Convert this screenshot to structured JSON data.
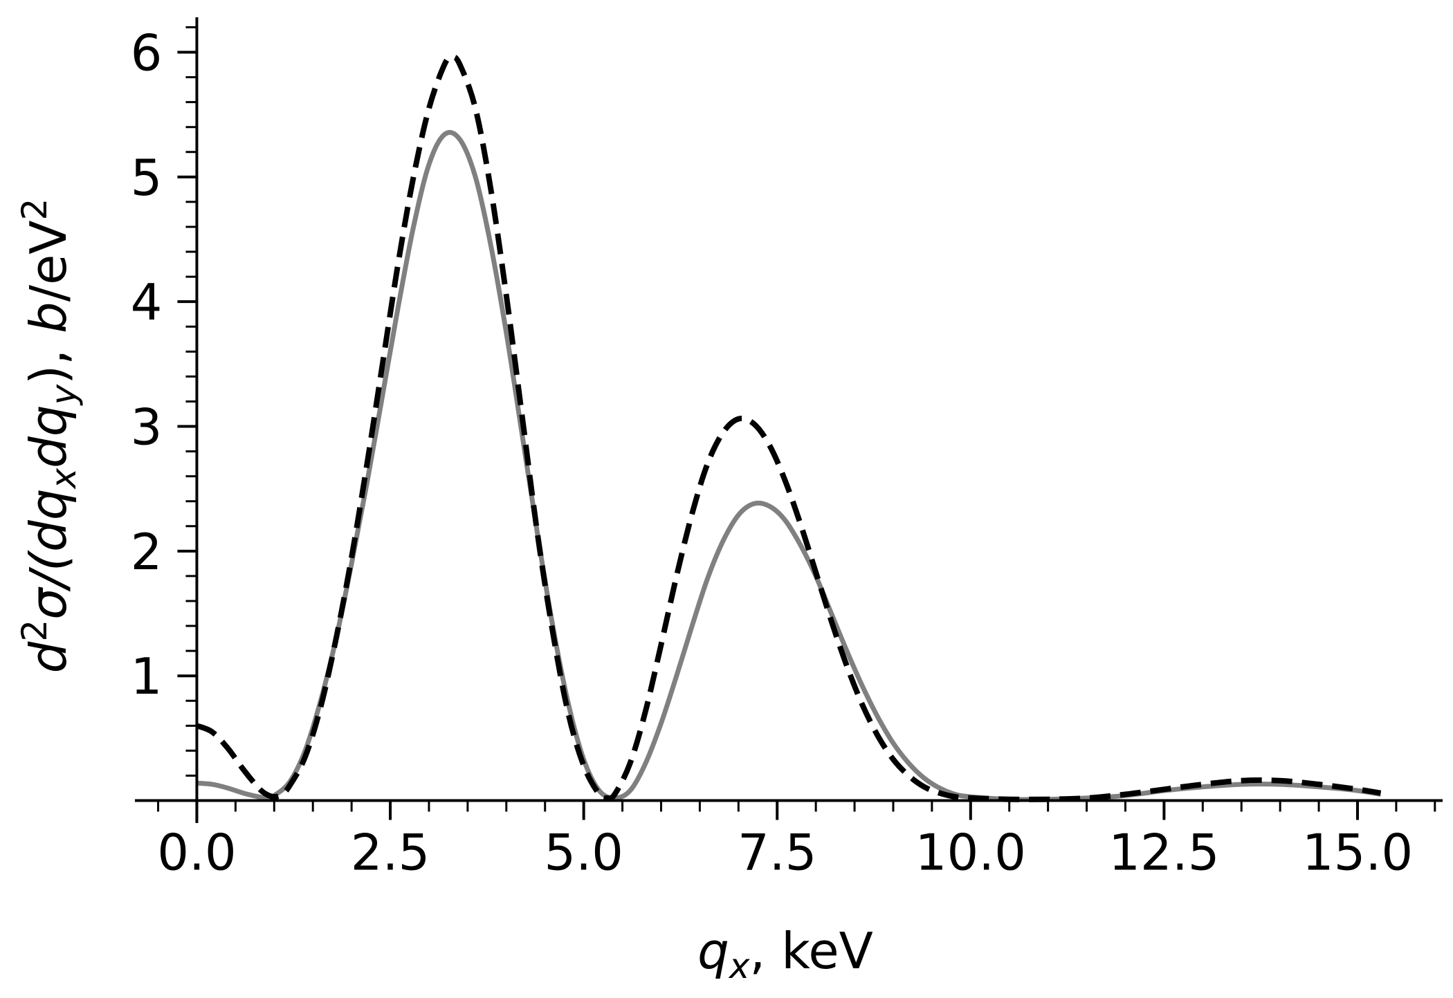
{
  "chart_data": {
    "type": "line",
    "title": "",
    "xlabel": {
      "var": "q",
      "sub": "x",
      "rest": ", keV"
    },
    "ylabel": {
      "d": "d",
      "d_sup": "2",
      "sigma": "σ/(dq",
      "sub1": "x",
      "mid": "dq",
      "sub2": "y",
      "close": "),  ",
      "unit_b": "b",
      "unit_rest": "/eV",
      "unit_sup": "2"
    },
    "xlim": [
      -0.8,
      16.1
    ],
    "ylim": [
      -0.18,
      6.28
    ],
    "x_ticks": [
      {
        "value": 0.0,
        "label": "0.0"
      },
      {
        "value": 2.5,
        "label": "2.5"
      },
      {
        "value": 5.0,
        "label": "5.0"
      },
      {
        "value": 7.5,
        "label": "7.5"
      },
      {
        "value": 10.0,
        "label": "10.0"
      },
      {
        "value": 12.5,
        "label": "12.5"
      },
      {
        "value": 15.0,
        "label": "15.0"
      }
    ],
    "y_ticks": [
      {
        "value": 1,
        "label": "1"
      },
      {
        "value": 2,
        "label": "2"
      },
      {
        "value": 3,
        "label": "3"
      },
      {
        "value": 4,
        "label": "4"
      },
      {
        "value": 5,
        "label": "5"
      },
      {
        "value": 6,
        "label": "6"
      }
    ],
    "x_minor_step": 0.5,
    "y_minor_step": 0.2,
    "grid": false,
    "legend": "none",
    "series": [
      {
        "style": "solid",
        "color": "#808080",
        "points": [
          [
            0.0,
            0.14
          ],
          [
            0.2,
            0.13
          ],
          [
            0.4,
            0.1
          ],
          [
            0.6,
            0.06
          ],
          [
            0.8,
            0.03
          ],
          [
            0.9,
            0.02
          ],
          [
            1.0,
            0.04
          ],
          [
            1.2,
            0.15
          ],
          [
            1.4,
            0.4
          ],
          [
            1.6,
            0.8
          ],
          [
            1.8,
            1.3
          ],
          [
            2.0,
            1.9
          ],
          [
            2.2,
            2.55
          ],
          [
            2.4,
            3.25
          ],
          [
            2.6,
            3.95
          ],
          [
            2.8,
            4.6
          ],
          [
            3.0,
            5.1
          ],
          [
            3.2,
            5.34
          ],
          [
            3.4,
            5.3
          ],
          [
            3.6,
            5.0
          ],
          [
            3.8,
            4.45
          ],
          [
            4.0,
            3.75
          ],
          [
            4.2,
            2.95
          ],
          [
            4.4,
            2.15
          ],
          [
            4.6,
            1.4
          ],
          [
            4.8,
            0.78
          ],
          [
            5.0,
            0.33
          ],
          [
            5.2,
            0.08
          ],
          [
            5.4,
            0.02
          ],
          [
            5.6,
            0.08
          ],
          [
            5.8,
            0.3
          ],
          [
            6.0,
            0.62
          ],
          [
            6.2,
            1.0
          ],
          [
            6.4,
            1.4
          ],
          [
            6.6,
            1.78
          ],
          [
            6.8,
            2.08
          ],
          [
            7.0,
            2.29
          ],
          [
            7.2,
            2.38
          ],
          [
            7.4,
            2.36
          ],
          [
            7.6,
            2.25
          ],
          [
            7.8,
            2.05
          ],
          [
            8.0,
            1.8
          ],
          [
            8.2,
            1.5
          ],
          [
            8.4,
            1.2
          ],
          [
            8.6,
            0.92
          ],
          [
            8.8,
            0.67
          ],
          [
            9.0,
            0.46
          ],
          [
            9.2,
            0.3
          ],
          [
            9.4,
            0.18
          ],
          [
            9.6,
            0.1
          ],
          [
            9.8,
            0.05
          ],
          [
            10.0,
            0.03
          ],
          [
            10.5,
            0.01
          ],
          [
            11.0,
            0.01
          ],
          [
            11.5,
            0.02
          ],
          [
            12.0,
            0.04
          ],
          [
            12.5,
            0.08
          ],
          [
            13.0,
            0.11
          ],
          [
            13.5,
            0.13
          ],
          [
            14.0,
            0.13
          ],
          [
            14.5,
            0.11
          ],
          [
            15.0,
            0.08
          ],
          [
            15.3,
            0.05
          ]
        ]
      },
      {
        "style": "dashed",
        "color": "#000000",
        "points": [
          [
            0.0,
            0.6
          ],
          [
            0.2,
            0.55
          ],
          [
            0.4,
            0.42
          ],
          [
            0.6,
            0.25
          ],
          [
            0.8,
            0.1
          ],
          [
            0.9,
            0.05
          ],
          [
            1.0,
            0.03
          ],
          [
            1.1,
            0.05
          ],
          [
            1.2,
            0.12
          ],
          [
            1.4,
            0.35
          ],
          [
            1.6,
            0.75
          ],
          [
            1.8,
            1.3
          ],
          [
            2.0,
            1.95
          ],
          [
            2.2,
            2.7
          ],
          [
            2.4,
            3.5
          ],
          [
            2.6,
            4.3
          ],
          [
            2.8,
            5.0
          ],
          [
            3.0,
            5.55
          ],
          [
            3.2,
            5.9
          ],
          [
            3.3,
            5.96
          ],
          [
            3.4,
            5.9
          ],
          [
            3.6,
            5.55
          ],
          [
            3.8,
            4.9
          ],
          [
            4.0,
            4.05
          ],
          [
            4.2,
            3.1
          ],
          [
            4.4,
            2.15
          ],
          [
            4.6,
            1.35
          ],
          [
            4.8,
            0.7
          ],
          [
            5.0,
            0.28
          ],
          [
            5.2,
            0.05
          ],
          [
            5.3,
            0.02
          ],
          [
            5.4,
            0.05
          ],
          [
            5.6,
            0.3
          ],
          [
            5.8,
            0.72
          ],
          [
            6.0,
            1.25
          ],
          [
            6.2,
            1.8
          ],
          [
            6.4,
            2.3
          ],
          [
            6.6,
            2.7
          ],
          [
            6.8,
            2.95
          ],
          [
            7.0,
            3.06
          ],
          [
            7.2,
            3.02
          ],
          [
            7.4,
            2.85
          ],
          [
            7.6,
            2.57
          ],
          [
            7.8,
            2.22
          ],
          [
            8.0,
            1.83
          ],
          [
            8.2,
            1.44
          ],
          [
            8.4,
            1.08
          ],
          [
            8.6,
            0.77
          ],
          [
            8.8,
            0.52
          ],
          [
            9.0,
            0.33
          ],
          [
            9.2,
            0.2
          ],
          [
            9.4,
            0.11
          ],
          [
            9.6,
            0.06
          ],
          [
            9.8,
            0.03
          ],
          [
            10.0,
            0.02
          ],
          [
            10.5,
            0.01
          ],
          [
            11.0,
            0.01
          ],
          [
            11.5,
            0.02
          ],
          [
            12.0,
            0.05
          ],
          [
            12.5,
            0.09
          ],
          [
            13.0,
            0.13
          ],
          [
            13.5,
            0.16
          ],
          [
            14.0,
            0.16
          ],
          [
            14.5,
            0.13
          ],
          [
            15.0,
            0.09
          ],
          [
            15.3,
            0.06
          ]
        ]
      }
    ]
  }
}
